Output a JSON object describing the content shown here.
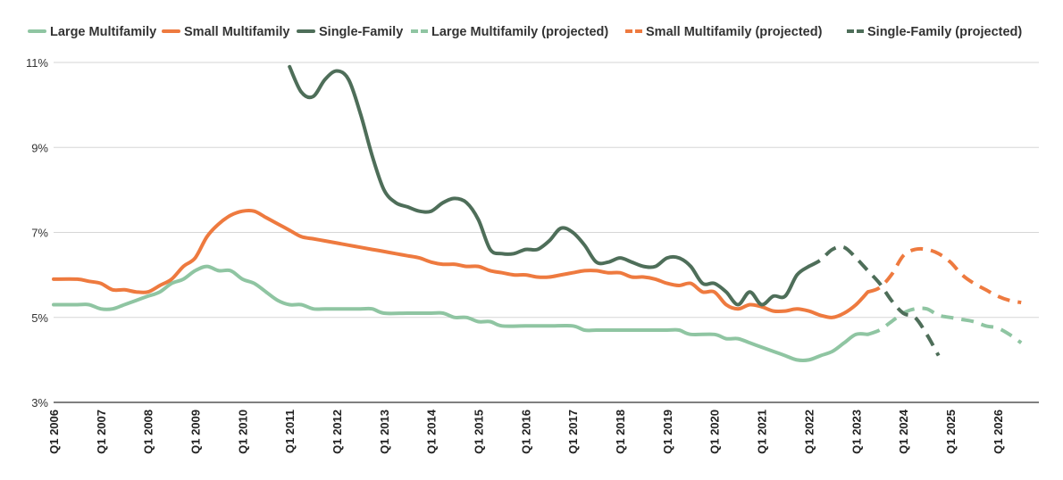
{
  "chart_data": {
    "type": "line",
    "title": "",
    "xlabel": "",
    "ylabel": "",
    "ylim": [
      3,
      11
    ],
    "yticks": [
      "11%",
      "9%",
      "7%",
      "5%",
      "3%"
    ],
    "ytick_values": [
      11,
      9,
      7,
      5,
      3
    ],
    "xlim": [
      2006.0,
      2026.875
    ],
    "x_tick_labels": [
      "Q1 2006",
      "Q1 2007",
      "Q1 2008",
      "Q1 2009",
      "Q1 2010",
      "Q1 2011",
      "Q1 2012",
      "Q1 2013",
      "Q1 2014",
      "Q1 2015",
      "Q1 2016",
      "Q1 2017",
      "Q1 2018",
      "Q1 2019",
      "Q1 2020",
      "Q1 2021",
      "Q1 2022",
      "Q1 2023",
      "Q1 2024",
      "Q1 2025",
      "Q1 2026"
    ],
    "x_tick_values": [
      2006,
      2007,
      2008,
      2009,
      2010,
      2011,
      2012,
      2013,
      2014,
      2015,
      2016,
      2017,
      2018,
      2019,
      2020,
      2021,
      2022,
      2023,
      2024,
      2025,
      2026
    ],
    "grid": true,
    "legend_position": "top",
    "series": [
      {
        "name": "Large Multifamily",
        "color": "#8fc5a2",
        "dashed": false,
        "points": [
          [
            2006,
            5.3
          ],
          [
            2006.5,
            5.3
          ],
          [
            2006.75,
            5.3
          ],
          [
            2007,
            5.2
          ],
          [
            2007.25,
            5.2
          ],
          [
            2007.5,
            5.3
          ],
          [
            2007.75,
            5.4
          ],
          [
            2008,
            5.5
          ],
          [
            2008.25,
            5.6
          ],
          [
            2008.5,
            5.8
          ],
          [
            2008.75,
            5.9
          ],
          [
            2009,
            6.1
          ],
          [
            2009.25,
            6.2
          ],
          [
            2009.5,
            6.1
          ],
          [
            2009.75,
            6.1
          ],
          [
            2010,
            5.9
          ],
          [
            2010.25,
            5.8
          ],
          [
            2010.5,
            5.6
          ],
          [
            2010.75,
            5.4
          ],
          [
            2011,
            5.3
          ],
          [
            2011.25,
            5.3
          ],
          [
            2011.5,
            5.2
          ],
          [
            2011.75,
            5.2
          ],
          [
            2012,
            5.2
          ],
          [
            2012.5,
            5.2
          ],
          [
            2012.75,
            5.2
          ],
          [
            2013,
            5.1
          ],
          [
            2013.5,
            5.1
          ],
          [
            2014,
            5.1
          ],
          [
            2014.25,
            5.1
          ],
          [
            2014.5,
            5.0
          ],
          [
            2014.75,
            5.0
          ],
          [
            2015,
            4.9
          ],
          [
            2015.25,
            4.9
          ],
          [
            2015.5,
            4.8
          ],
          [
            2016,
            4.8
          ],
          [
            2016.5,
            4.8
          ],
          [
            2017,
            4.8
          ],
          [
            2017.25,
            4.7
          ],
          [
            2017.5,
            4.7
          ],
          [
            2018,
            4.7
          ],
          [
            2018.5,
            4.7
          ],
          [
            2019,
            4.7
          ],
          [
            2019.25,
            4.7
          ],
          [
            2019.5,
            4.6
          ],
          [
            2020,
            4.6
          ],
          [
            2020.25,
            4.5
          ],
          [
            2020.5,
            4.5
          ],
          [
            2020.75,
            4.4
          ],
          [
            2021,
            4.3
          ],
          [
            2021.25,
            4.2
          ],
          [
            2021.5,
            4.1
          ],
          [
            2021.75,
            4.0
          ],
          [
            2022,
            4.0
          ],
          [
            2022.25,
            4.1
          ],
          [
            2022.5,
            4.2
          ],
          [
            2022.75,
            4.4
          ],
          [
            2023,
            4.6
          ],
          [
            2023.25,
            4.6
          ]
        ]
      },
      {
        "name": "Small Multifamily",
        "color": "#ee7a3f",
        "dashed": false,
        "points": [
          [
            2006,
            5.9
          ],
          [
            2006.5,
            5.9
          ],
          [
            2006.75,
            5.85
          ],
          [
            2007,
            5.8
          ],
          [
            2007.25,
            5.65
          ],
          [
            2007.5,
            5.65
          ],
          [
            2007.75,
            5.6
          ],
          [
            2008,
            5.6
          ],
          [
            2008.25,
            5.75
          ],
          [
            2008.5,
            5.9
          ],
          [
            2008.75,
            6.2
          ],
          [
            2009,
            6.4
          ],
          [
            2009.25,
            6.9
          ],
          [
            2009.5,
            7.2
          ],
          [
            2009.75,
            7.4
          ],
          [
            2010,
            7.5
          ],
          [
            2010.25,
            7.5
          ],
          [
            2010.5,
            7.35
          ],
          [
            2010.75,
            7.2
          ],
          [
            2011,
            7.05
          ],
          [
            2011.25,
            6.9
          ],
          [
            2011.5,
            6.85
          ],
          [
            2011.75,
            6.8
          ],
          [
            2012,
            6.75
          ],
          [
            2012.25,
            6.7
          ],
          [
            2012.5,
            6.65
          ],
          [
            2012.75,
            6.6
          ],
          [
            2013,
            6.55
          ],
          [
            2013.25,
            6.5
          ],
          [
            2013.5,
            6.45
          ],
          [
            2013.75,
            6.4
          ],
          [
            2014,
            6.3
          ],
          [
            2014.25,
            6.25
          ],
          [
            2014.5,
            6.25
          ],
          [
            2014.75,
            6.2
          ],
          [
            2015,
            6.2
          ],
          [
            2015.25,
            6.1
          ],
          [
            2015.5,
            6.05
          ],
          [
            2015.75,
            6.0
          ],
          [
            2016,
            6.0
          ],
          [
            2016.25,
            5.95
          ],
          [
            2016.5,
            5.95
          ],
          [
            2016.75,
            6.0
          ],
          [
            2017,
            6.05
          ],
          [
            2017.25,
            6.1
          ],
          [
            2017.5,
            6.1
          ],
          [
            2017.75,
            6.05
          ],
          [
            2018,
            6.05
          ],
          [
            2018.25,
            5.95
          ],
          [
            2018.5,
            5.95
          ],
          [
            2018.75,
            5.9
          ],
          [
            2019,
            5.8
          ],
          [
            2019.25,
            5.75
          ],
          [
            2019.5,
            5.8
          ],
          [
            2019.75,
            5.6
          ],
          [
            2020,
            5.6
          ],
          [
            2020.25,
            5.3
          ],
          [
            2020.5,
            5.2
          ],
          [
            2020.75,
            5.3
          ],
          [
            2021,
            5.25
          ],
          [
            2021.25,
            5.15
          ],
          [
            2021.5,
            5.15
          ],
          [
            2021.75,
            5.2
          ],
          [
            2022,
            5.15
          ],
          [
            2022.25,
            5.05
          ],
          [
            2022.5,
            5.0
          ],
          [
            2022.75,
            5.1
          ],
          [
            2023,
            5.3
          ],
          [
            2023.25,
            5.6
          ]
        ]
      },
      {
        "name": "Single-Family",
        "color": "#4e6e59",
        "dashed": false,
        "points": [
          [
            2011,
            10.9
          ],
          [
            2011.25,
            10.3
          ],
          [
            2011.5,
            10.2
          ],
          [
            2011.75,
            10.6
          ],
          [
            2012,
            10.8
          ],
          [
            2012.25,
            10.6
          ],
          [
            2012.5,
            9.8
          ],
          [
            2012.75,
            8.8
          ],
          [
            2013,
            8.0
          ],
          [
            2013.25,
            7.7
          ],
          [
            2013.5,
            7.6
          ],
          [
            2013.75,
            7.5
          ],
          [
            2014,
            7.5
          ],
          [
            2014.25,
            7.7
          ],
          [
            2014.5,
            7.8
          ],
          [
            2014.75,
            7.7
          ],
          [
            2015,
            7.3
          ],
          [
            2015.25,
            6.6
          ],
          [
            2015.5,
            6.5
          ],
          [
            2015.75,
            6.5
          ],
          [
            2016,
            6.6
          ],
          [
            2016.25,
            6.6
          ],
          [
            2016.5,
            6.8
          ],
          [
            2016.75,
            7.1
          ],
          [
            2017,
            7.0
          ],
          [
            2017.25,
            6.7
          ],
          [
            2017.5,
            6.3
          ],
          [
            2017.75,
            6.3
          ],
          [
            2018,
            6.4
          ],
          [
            2018.25,
            6.3
          ],
          [
            2018.5,
            6.2
          ],
          [
            2018.75,
            6.2
          ],
          [
            2019,
            6.4
          ],
          [
            2019.25,
            6.4
          ],
          [
            2019.5,
            6.2
          ],
          [
            2019.75,
            5.8
          ],
          [
            2020,
            5.8
          ],
          [
            2020.25,
            5.6
          ],
          [
            2020.5,
            5.3
          ],
          [
            2020.75,
            5.6
          ],
          [
            2021,
            5.3
          ],
          [
            2021.25,
            5.5
          ],
          [
            2021.5,
            5.5
          ],
          [
            2021.75,
            6.0
          ],
          [
            2022,
            6.2
          ]
        ]
      },
      {
        "name": "Large Multifamily (projected)",
        "color": "#8fc5a2",
        "dashed": true,
        "points": [
          [
            2023.25,
            4.6
          ],
          [
            2023.5,
            4.7
          ],
          [
            2023.75,
            4.9
          ],
          [
            2024,
            5.1
          ],
          [
            2024.25,
            5.2
          ],
          [
            2024.5,
            5.2
          ],
          [
            2024.75,
            5.05
          ],
          [
            2025,
            5.0
          ],
          [
            2025.25,
            4.95
          ],
          [
            2025.5,
            4.9
          ],
          [
            2025.75,
            4.8
          ],
          [
            2026,
            4.75
          ],
          [
            2026.25,
            4.6
          ],
          [
            2026.5,
            4.4
          ]
        ]
      },
      {
        "name": "Small Multifamily (projected)",
        "color": "#ee7a3f",
        "dashed": true,
        "points": [
          [
            2023.25,
            5.6
          ],
          [
            2023.5,
            5.7
          ],
          [
            2023.75,
            6.0
          ],
          [
            2024,
            6.45
          ],
          [
            2024.25,
            6.6
          ],
          [
            2024.5,
            6.6
          ],
          [
            2024.75,
            6.5
          ],
          [
            2025,
            6.3
          ],
          [
            2025.25,
            6.0
          ],
          [
            2025.5,
            5.8
          ],
          [
            2025.75,
            5.65
          ],
          [
            2026,
            5.5
          ],
          [
            2026.25,
            5.4
          ],
          [
            2026.5,
            5.35
          ]
        ]
      },
      {
        "name": "Single-Family (projected)",
        "color": "#4e6e59",
        "dashed": true,
        "points": [
          [
            2022,
            6.2
          ],
          [
            2022.25,
            6.35
          ],
          [
            2022.5,
            6.6
          ],
          [
            2022.75,
            6.65
          ],
          [
            2023,
            6.4
          ],
          [
            2023.25,
            6.1
          ],
          [
            2023.5,
            5.8
          ],
          [
            2023.75,
            5.4
          ],
          [
            2024,
            5.1
          ],
          [
            2024.25,
            5.0
          ],
          [
            2024.5,
            4.6
          ],
          [
            2024.75,
            4.1
          ]
        ]
      }
    ]
  }
}
